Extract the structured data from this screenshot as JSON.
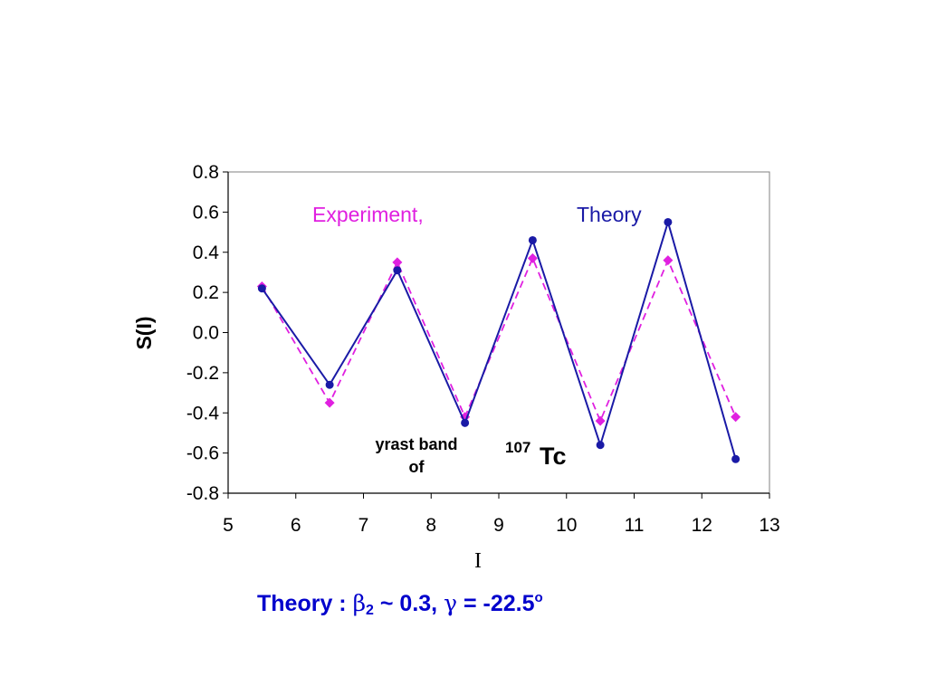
{
  "chart_data": {
    "type": "line",
    "xlabel": "I",
    "ylabel": "S(I)",
    "xlim": [
      5,
      13
    ],
    "ylim": [
      -0.8,
      0.8
    ],
    "xticks": [
      "5",
      "6",
      "7",
      "8",
      "9",
      "10",
      "11",
      "12",
      "13"
    ],
    "yticks": [
      "0.8",
      "0.6",
      "0.4",
      "0.2",
      "0.0",
      "-0.2",
      "-0.4",
      "-0.6",
      "-0.8"
    ],
    "grid": false,
    "series": [
      {
        "name": "Experiment,",
        "color": "#e020e0",
        "line_style": "dashed",
        "marker": "diamond",
        "x": [
          5.5,
          6.5,
          7.5,
          8.5,
          9.5,
          10.5,
          11.5,
          12.5
        ],
        "y": [
          0.23,
          -0.35,
          0.35,
          -0.42,
          0.37,
          -0.44,
          0.36,
          -0.42
        ]
      },
      {
        "name": "Theory",
        "color": "#1a1aa6",
        "line_style": "solid",
        "marker": "circle",
        "x": [
          5.5,
          6.5,
          7.5,
          8.5,
          9.5,
          10.5,
          11.5,
          12.5
        ],
        "y": [
          0.22,
          -0.26,
          0.31,
          -0.45,
          0.46,
          -0.56,
          0.55,
          -0.63
        ]
      }
    ],
    "annotations": {
      "band_line1": "yrast band",
      "band_line2": "of",
      "nucleus_mass": "107",
      "nucleus_symbol": "Tc"
    }
  },
  "caption": {
    "prefix": "Theory : ",
    "beta": "β",
    "beta_sub": "2",
    "tilde_part": " ~ 0.3,   ",
    "gamma": "γ",
    "gamma_part": " = -22.5",
    "deg_sup": "o"
  }
}
